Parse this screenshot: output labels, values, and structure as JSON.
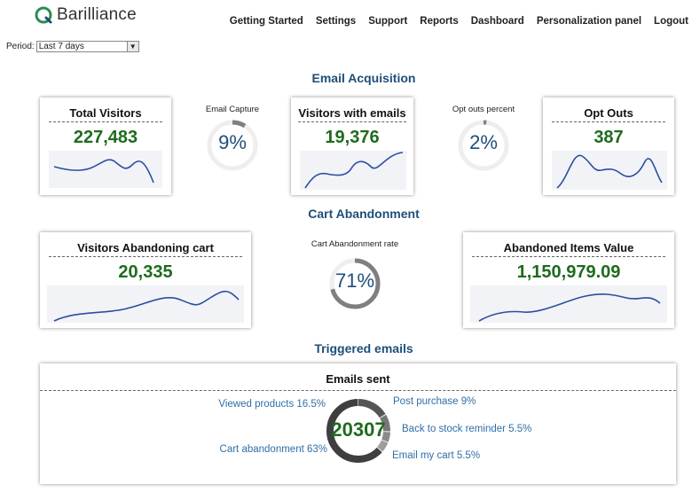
{
  "header": {
    "logo_text": "Barilliance",
    "nav": [
      "Getting Started",
      "Settings",
      "Support",
      "Reports",
      "Dashboard",
      "Personalization panel",
      "Logout"
    ]
  },
  "period": {
    "label": "Period:",
    "value": "Last 7 days"
  },
  "sections": {
    "email_acquisition": "Email Acquisition",
    "cart_abandonment": "Cart Abandonment",
    "triggered_emails": "Triggered emails"
  },
  "cards": {
    "total_visitors": {
      "title": "Total Visitors",
      "value": "227,483"
    },
    "visitors_with_emails": {
      "title": "Visitors with emails",
      "value": "19,376"
    },
    "opt_outs": {
      "title": "Opt Outs",
      "value": "387"
    },
    "visitors_abandoning_cart": {
      "title": "Visitors Abandoning cart",
      "value": "20,335"
    },
    "abandoned_items_value": {
      "title": "Abandoned Items Value",
      "value": "1,150,979.09"
    }
  },
  "rings": {
    "email_capture": {
      "label": "Email Capture",
      "value": "9%",
      "fraction": 0.09
    },
    "opt_outs_percent": {
      "label": "Opt outs percent",
      "value": "2%",
      "fraction": 0.02
    },
    "cart_abandonment_rate": {
      "label": "Cart Abandonment rate",
      "value": "71%",
      "fraction": 0.71
    }
  },
  "emails_sent": {
    "title": "Emails sent",
    "total": "20307",
    "segments": [
      {
        "label": "Viewed products 16.5%",
        "share": 16.5
      },
      {
        "label": "Post purchase 9%",
        "share": 9
      },
      {
        "label": "Back to stock reminder 5.5%",
        "share": 5.5
      },
      {
        "label": "Email my cart 5.5%",
        "share": 5.5
      },
      {
        "label": "Cart abandonment 63%",
        "share": 63
      }
    ]
  },
  "colors": {
    "title_blue": "#1f4e79",
    "value_green": "#1e6b1e",
    "spark_line": "#2b4ea0",
    "ring_track": "#eeeeee",
    "ring_fill": "#7f7f7f",
    "label_blue": "#2f6fa8"
  }
}
